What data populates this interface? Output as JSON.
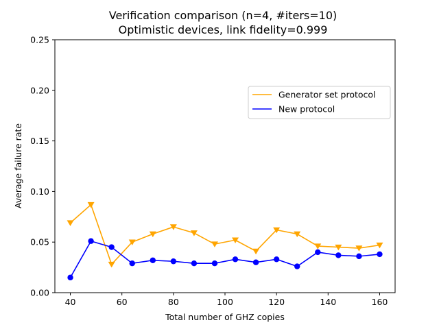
{
  "chart_data": {
    "type": "line",
    "title": "Verification comparison (n=4, #iters=10)",
    "subtitle": "Optimistic devices, link fidelity=0.999",
    "xlabel": "Total number of GHZ copies",
    "ylabel": "Average failure rate",
    "xlim": [
      34,
      166
    ],
    "ylim": [
      0,
      0.25
    ],
    "xticks": [
      40,
      60,
      80,
      100,
      120,
      140,
      160
    ],
    "yticks": [
      0.0,
      0.05,
      0.1,
      0.15,
      0.2,
      0.25
    ],
    "xtick_labels": [
      "40",
      "60",
      "80",
      "100",
      "120",
      "140",
      "160"
    ],
    "ytick_labels": [
      "0.00",
      "0.05",
      "0.10",
      "0.15",
      "0.20",
      "0.25"
    ],
    "grid": false,
    "legend_position": "upper right",
    "x": [
      40,
      48,
      56,
      64,
      72,
      80,
      88,
      96,
      104,
      112,
      120,
      128,
      136,
      144,
      152,
      160
    ],
    "series": [
      {
        "name": "Generator set protocol",
        "color": "#FFA500",
        "marker": "triangle-down",
        "values": [
          0.069,
          0.087,
          0.028,
          0.05,
          0.058,
          0.065,
          0.059,
          0.048,
          0.052,
          0.041,
          0.062,
          0.058,
          0.046,
          0.045,
          0.044,
          0.047
        ]
      },
      {
        "name": "New protocol",
        "color": "#0000FF",
        "marker": "circle",
        "values": [
          0.015,
          0.051,
          0.045,
          0.029,
          0.032,
          0.031,
          0.029,
          0.029,
          0.033,
          0.03,
          0.033,
          0.026,
          0.04,
          0.037,
          0.036,
          0.038
        ]
      }
    ]
  }
}
